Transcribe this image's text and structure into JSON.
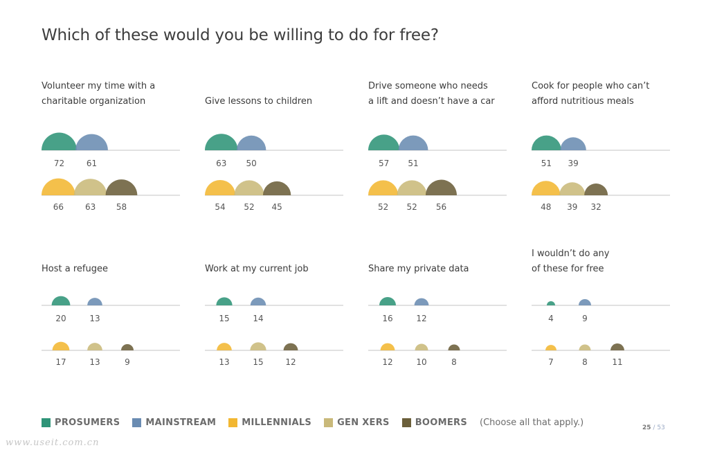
{
  "chart_data": {
    "type": "bubble-semicircle-grid",
    "title": "Which of these would you be willing to do for free?",
    "legend": [
      {
        "name": "PROSUMERS",
        "color": "#2f9478"
      },
      {
        "name": "MAINSTREAM",
        "color": "#6a8cb2"
      },
      {
        "name": "MILLENNIALS",
        "color": "#f2b732"
      },
      {
        "name": "GEN XERS",
        "color": "#c9b97a"
      },
      {
        "name": "BOOMERS",
        "color": "#6b5f3a"
      }
    ],
    "legend_note": "(Choose all that apply.)",
    "panels": [
      {
        "label_lines": [
          "Volunteer my time with a",
          "charitable organization"
        ],
        "top": [
          72,
          61
        ],
        "bottom": [
          66,
          63,
          58
        ]
      },
      {
        "label_lines": [
          "Give lessons to children"
        ],
        "top": [
          63,
          50
        ],
        "bottom": [
          54,
          52,
          45
        ]
      },
      {
        "label_lines": [
          "Drive someone who needs",
          "a lift and doesn’t have a car"
        ],
        "top": [
          57,
          51
        ],
        "bottom": [
          52,
          52,
          56
        ]
      },
      {
        "label_lines": [
          "Cook for people who can’t",
          "afford nutritious meals"
        ],
        "top": [
          51,
          39
        ],
        "bottom": [
          48,
          39,
          32
        ]
      },
      {
        "label_lines": [
          "Host a refugee"
        ],
        "top": [
          20,
          13
        ],
        "bottom": [
          17,
          13,
          9
        ]
      },
      {
        "label_lines": [
          "Work at my current job"
        ],
        "top": [
          15,
          14
        ],
        "bottom": [
          13,
          15,
          12
        ]
      },
      {
        "label_lines": [
          "Share my private data"
        ],
        "top": [
          16,
          12
        ],
        "bottom": [
          12,
          10,
          8
        ]
      },
      {
        "label_lines": [
          "I wouldn’t do any",
          "of these for free"
        ],
        "top": [
          4,
          9
        ],
        "bottom": [
          7,
          8,
          11
        ]
      }
    ]
  },
  "page": {
    "current": "25",
    "separator": "/",
    "total": "53"
  },
  "watermark": "www.useit.com.cn"
}
